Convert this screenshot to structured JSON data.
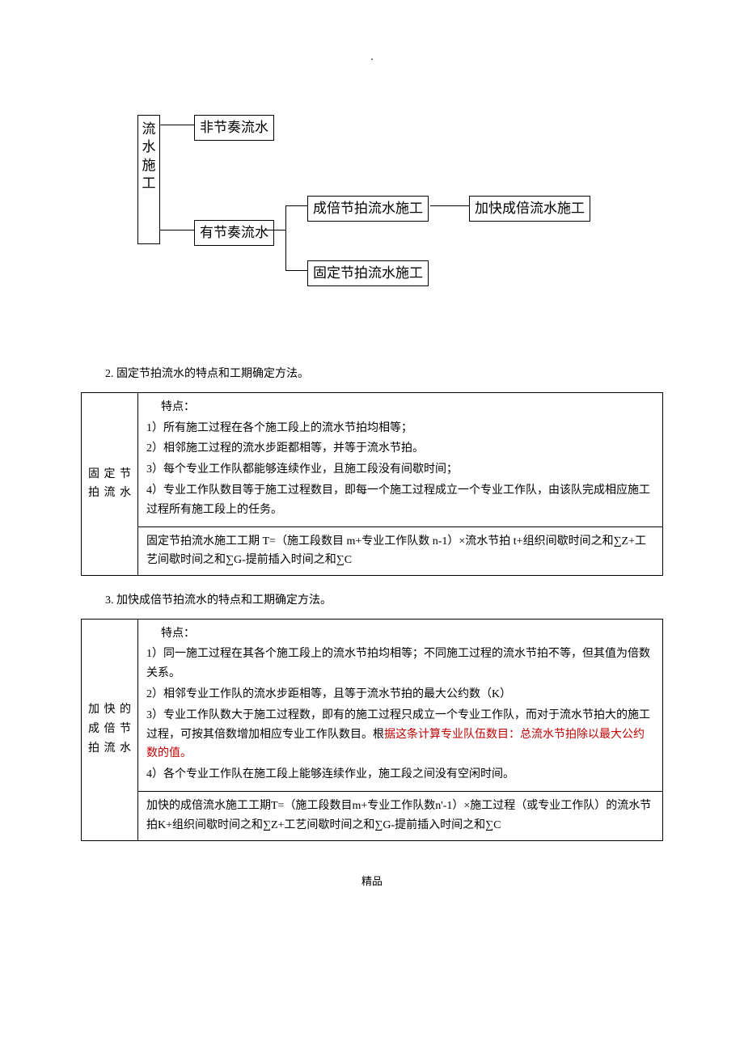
{
  "dot": ".",
  "diagram": {
    "root": "流水施工",
    "branch1": "非节奏流水",
    "branch2": "有节奏流水",
    "node_beat_multi": "成倍节拍流水施工",
    "node_beat_fixed": "固定节拍流水施工",
    "node_speedup": "加快成倍流水施工"
  },
  "section2": {
    "heading": "2. 固定节拍流水的特点和工期确定方法。",
    "label": "固定节拍流水",
    "points_header": "特点：",
    "p1": "1）所有施工过程在各个施工段上的流水节拍均相等；",
    "p2": "2）相邻施工过程的流水步距都相等，并等于流水节拍。",
    "p3": "3）每个专业工作队都能够连续作业，且施工段没有间歇时间；",
    "p4": "4）专业工作队数目等于施工过程数目，即每一个施工过程成立一个专业工作队，由该队完成相应施工过程所有施工段上的任务。",
    "formula": "固定节拍流水施工工期 T=（施工段数目 m+专业工作队数 n-1）×流水节拍 t+组织间歇时间之和∑Z+工艺间歇时间之和∑G-提前插入时间之和∑C"
  },
  "section3": {
    "heading": "3. 加快成倍节拍流水的特点和工期确定方法。",
    "label": "加快的成倍节拍流水",
    "points_header": "特点：",
    "p1": "1）同一施工过程在其各个施工段上的流水节拍均相等；不同施工过程的流水节拍不等，但其值为倍数关系。",
    "p2": "2）相邻专业工作队的流水步距相等，且等于流水节拍的最大公约数（K）",
    "p3_pre": "3）专业工作队数大于施工过程数，即有的施工过程只成立一个专业工作队，而对于流水节拍大的施工过程，可按其倍数增加相应专业工作队数目。根",
    "p3_red": "据这条计算专业队伍数目：总流水节拍除以最大公约数的值。",
    "p4": "4）各个专业工作队在施工段上能够连续作业，施工段之间没有空闲时间。",
    "formula": "加快的成倍流水施工工期T=（施工段数目m+专业工作队数n'-1）×施工过程（或专业工作队）的流水节拍K+组织间歇时间之和∑Z+工艺间歇时间之和∑G-提前插入时间之和∑C"
  },
  "footer": "精品",
  "colors": {
    "text": "#000000",
    "red": "#c00000",
    "border": "#000000",
    "bg": "#ffffff"
  }
}
